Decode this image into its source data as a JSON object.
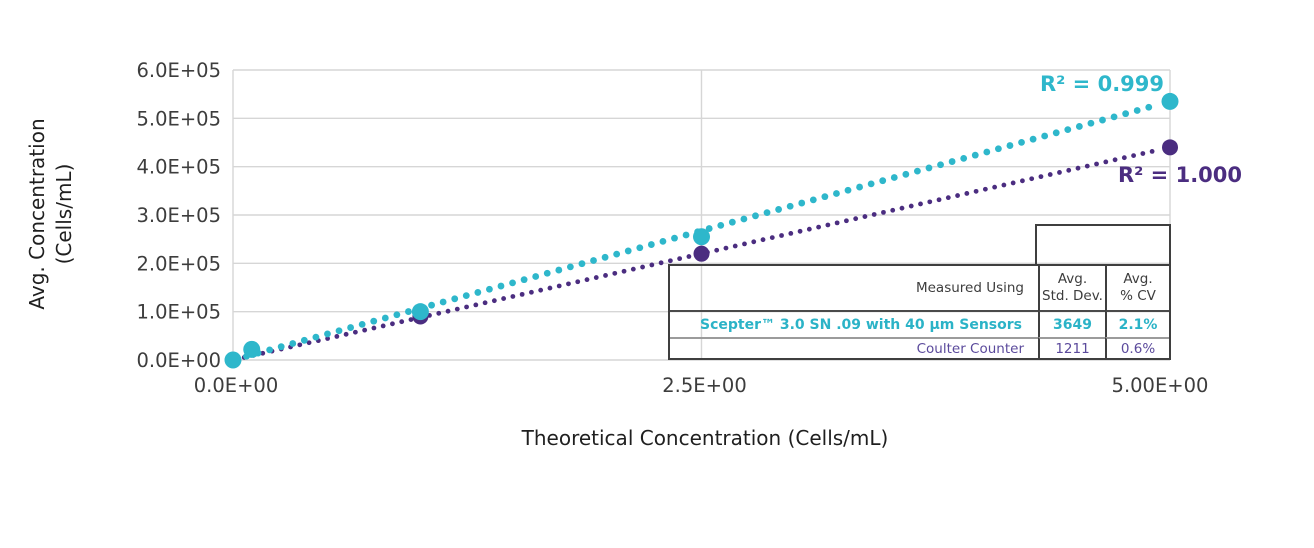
{
  "chart_data": {
    "type": "scatter",
    "title": "",
    "xlabel": "Theoretical Concentration (Cells/mL)",
    "ylabel": "Avg. Concentration (Cells/mL)",
    "ylabel_lines": [
      "Avg. Concentration",
      "(Cells/mL)"
    ],
    "xlim": [
      0,
      5
    ],
    "ylim": [
      0,
      600000
    ],
    "grid": true,
    "x_ticks": [
      {
        "value": 0,
        "label": "0.0E+00"
      },
      {
        "value": 2.5,
        "label": "2.5E+00"
      },
      {
        "value": 5,
        "label": "5.00E+00"
      }
    ],
    "y_ticks": [
      {
        "value": 0,
        "label": "0.0E+00"
      },
      {
        "value": 100000,
        "label": "1.0E+05"
      },
      {
        "value": 200000,
        "label": "2.0E+05"
      },
      {
        "value": 300000,
        "label": "3.0E+05"
      },
      {
        "value": 400000,
        "label": "4.0E+05"
      },
      {
        "value": 500000,
        "label": "5.0E+05"
      },
      {
        "value": 600000,
        "label": "6.0E+05"
      }
    ],
    "series": [
      {
        "name": "Scepter™ 3.0 SN .09 with 40 µm Sensors",
        "color": "#2EB7CB",
        "line_style": "dotted-trendline",
        "r2": 0.999,
        "r2_label": "R² = 0.999",
        "points": [
          [
            0,
            0
          ],
          [
            0.1,
            22000
          ],
          [
            1,
            100000
          ],
          [
            2.5,
            255000
          ],
          [
            5,
            535000
          ]
        ],
        "trendline": {
          "x": [
            0,
            5
          ],
          "y": [
            0,
            535000
          ]
        }
      },
      {
        "name": "Coulter Counter",
        "color": "#4B2D80",
        "line_style": "dotted-trendline",
        "r2": 1.0,
        "r2_label": "R² = 1.000",
        "points": [
          [
            1,
            90000
          ],
          [
            2.5,
            220000
          ],
          [
            5,
            440000
          ]
        ],
        "trendline": {
          "x": [
            0,
            5
          ],
          "y": [
            0,
            440000
          ]
        }
      }
    ]
  },
  "table": {
    "header": {
      "measured_using": "Measured Using",
      "avg_std_dev": "Avg.\nStd. Dev.",
      "avg_cv": "Avg.\n% CV"
    },
    "rows": [
      {
        "name": "Scepter™ 3.0 SN .09 with 40 µm Sensors",
        "std_dev": "3649",
        "cv": "2.1%"
      },
      {
        "name": "Coulter Counter",
        "std_dev": "1211",
        "cv": "0.6%"
      }
    ]
  },
  "colors": {
    "scepter_teal": "#2EB7CB",
    "coulter_purple": "#4B2D80",
    "table_purple_text": "#5B4A9C",
    "gridline": "#D6D6D6",
    "tick_text": "#3D3D3D",
    "background": "#FFFFFF"
  }
}
